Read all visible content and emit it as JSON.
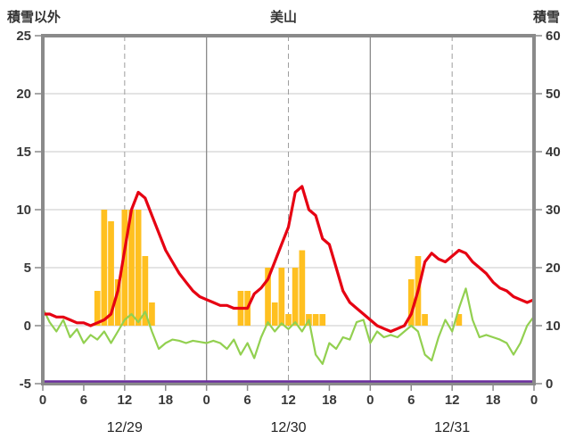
{
  "header": {
    "left_axis_title": "積雪以外",
    "title": "美山",
    "right_axis_title": "積雪"
  },
  "chart_data": {
    "type": "bar+line",
    "title": "美山",
    "hours_max": 72,
    "x_tick_hours": [
      0,
      6,
      12,
      18,
      24,
      30,
      36,
      42,
      48,
      54,
      60,
      66,
      72
    ],
    "x_tick_labels": [
      "0",
      "6",
      "12",
      "18",
      "0",
      "6",
      "12",
      "18",
      "0",
      "6",
      "12",
      "18",
      "0"
    ],
    "date_labels": [
      {
        "label": "12/29",
        "center_hour": 12
      },
      {
        "label": "12/30",
        "center_hour": 36
      },
      {
        "label": "12/31",
        "center_hour": 60
      }
    ],
    "left_axis": {
      "title": "積雪以外",
      "min": -5,
      "max": 25,
      "ticks": [
        25,
        20,
        15,
        10,
        5,
        0,
        -5
      ]
    },
    "right_axis": {
      "title": "積雪",
      "min": 0,
      "max": 60,
      "ticks": [
        60,
        50,
        40,
        30,
        20,
        10,
        0
      ]
    },
    "grid": {
      "h_left_values": [
        20,
        15,
        10,
        5,
        0
      ],
      "v_solid_hours": [
        24,
        48
      ],
      "v_dashed_hours": [
        12,
        36,
        60
      ]
    },
    "style": {
      "frame": "#8A8A8A",
      "grid": "#CACACA",
      "grid_dash": "#9E9E9E",
      "text": "#383838",
      "background": "#FFFFFF"
    },
    "series": [
      {
        "name": "snowfall",
        "type": "bar",
        "axis": "left",
        "color": "#FFC020",
        "values": [
          0,
          0,
          0,
          0,
          0,
          0,
          0,
          0,
          3,
          10,
          9,
          4,
          10,
          10,
          10,
          6,
          2,
          0,
          0,
          0,
          0,
          0,
          0,
          0,
          0,
          0,
          0,
          0,
          0,
          3,
          3,
          0,
          0,
          5,
          2,
          5,
          1,
          5,
          6.5,
          1,
          1,
          1,
          0,
          0,
          0,
          0,
          0,
          0,
          0,
          0,
          0,
          0,
          0,
          0,
          4,
          6,
          1,
          0,
          0,
          0,
          0,
          1,
          0,
          0,
          0,
          0,
          0,
          0,
          0,
          0,
          0,
          0,
          0
        ]
      },
      {
        "name": "temperature",
        "type": "line",
        "axis": "left",
        "color": "#92D050",
        "width": 2.2,
        "values": [
          1.5,
          0.3,
          -0.5,
          0.5,
          -1,
          -0.3,
          -1.5,
          -0.8,
          -1.2,
          -0.5,
          -1.5,
          -0.5,
          0.5,
          1,
          0.3,
          1.2,
          -0.5,
          -2,
          -1.5,
          -1.2,
          -1.3,
          -1.5,
          -1.3,
          -1.4,
          -1.5,
          -1.3,
          -1.5,
          -2,
          -1.2,
          -2.5,
          -1.5,
          -2.8,
          -1,
          0.3,
          -0.5,
          0.2,
          -0.3,
          0.3,
          -0.5,
          0.5,
          -2.5,
          -3.3,
          -1.5,
          -2,
          -1,
          -1.2,
          0.3,
          0.5,
          -1.5,
          -0.5,
          -1,
          -0.8,
          -1,
          -0.5,
          0,
          -0.5,
          -2.5,
          -3,
          -1,
          0.5,
          -0.5,
          1.5,
          3.2,
          0.5,
          -1,
          -0.8,
          -1,
          -1.2,
          -1.5,
          -2.5,
          -1.5,
          0,
          0.8
        ]
      },
      {
        "name": "snow-depth",
        "type": "line",
        "axis": "right",
        "color": "#E60012",
        "width": 3.2,
        "values": [
          12,
          12,
          11.5,
          11.5,
          11,
          10.5,
          10.5,
          10,
          10.5,
          11,
          12,
          16,
          23,
          30,
          33,
          32,
          29,
          26,
          23,
          21,
          19,
          17.5,
          16,
          15,
          14.5,
          14,
          13.5,
          13.5,
          13,
          13,
          13,
          15.5,
          16.5,
          18,
          21,
          24,
          27,
          33,
          34,
          30,
          29,
          25,
          24,
          20,
          16,
          14,
          13,
          12,
          11,
          10,
          9.5,
          9,
          9.5,
          10,
          12,
          16,
          21,
          22.5,
          21.5,
          21,
          22,
          23,
          22.5,
          21,
          20,
          19,
          17.5,
          16.5,
          16,
          15,
          14.5,
          14,
          14.5
        ]
      },
      {
        "name": "baseline",
        "type": "line",
        "axis": "right",
        "color": "#6B2E9E",
        "width": 2.5,
        "constant": 0
      }
    ]
  }
}
